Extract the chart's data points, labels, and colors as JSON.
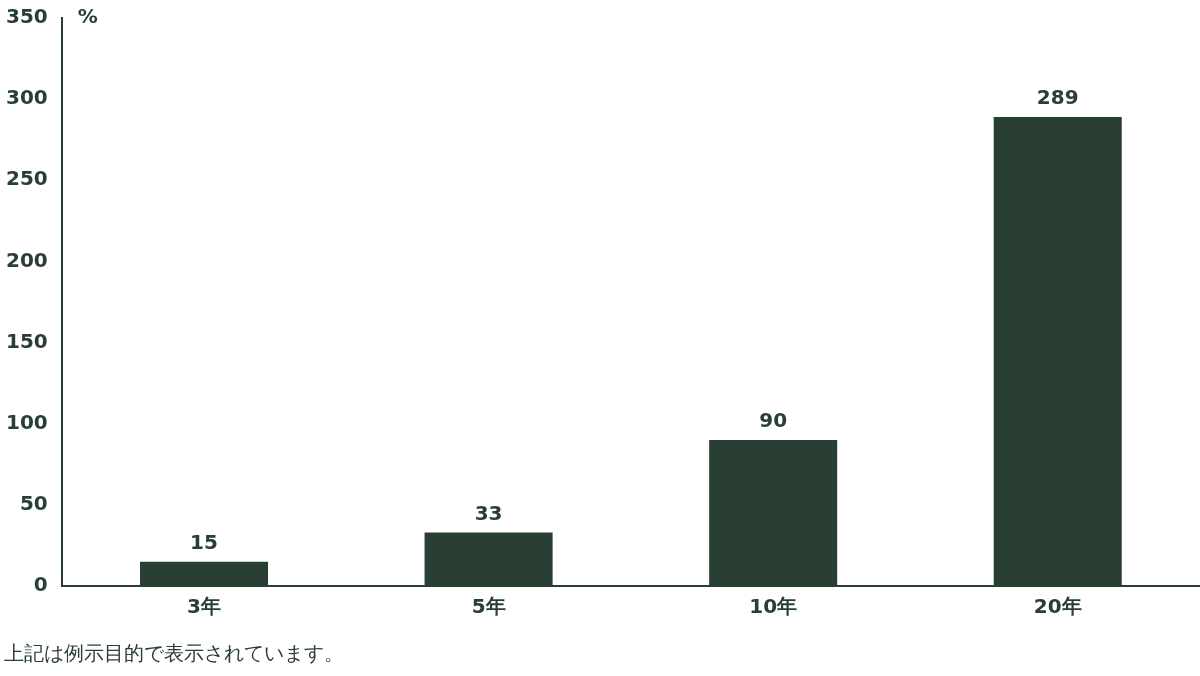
{
  "chart_data": {
    "type": "bar",
    "ylabel": "%",
    "categories": [
      "3年",
      "5年",
      "10年",
      "20年"
    ],
    "values": [
      15,
      33,
      90,
      289
    ],
    "color": "#2a3f34",
    "ylim": [
      0,
      350
    ],
    "yticks": [
      0,
      50,
      100,
      150,
      200,
      250,
      300,
      350
    ],
    "grid": false,
    "legend": false,
    "data_labels": true,
    "annotations": [
      "上記は例示目的で表示されています。"
    ]
  }
}
